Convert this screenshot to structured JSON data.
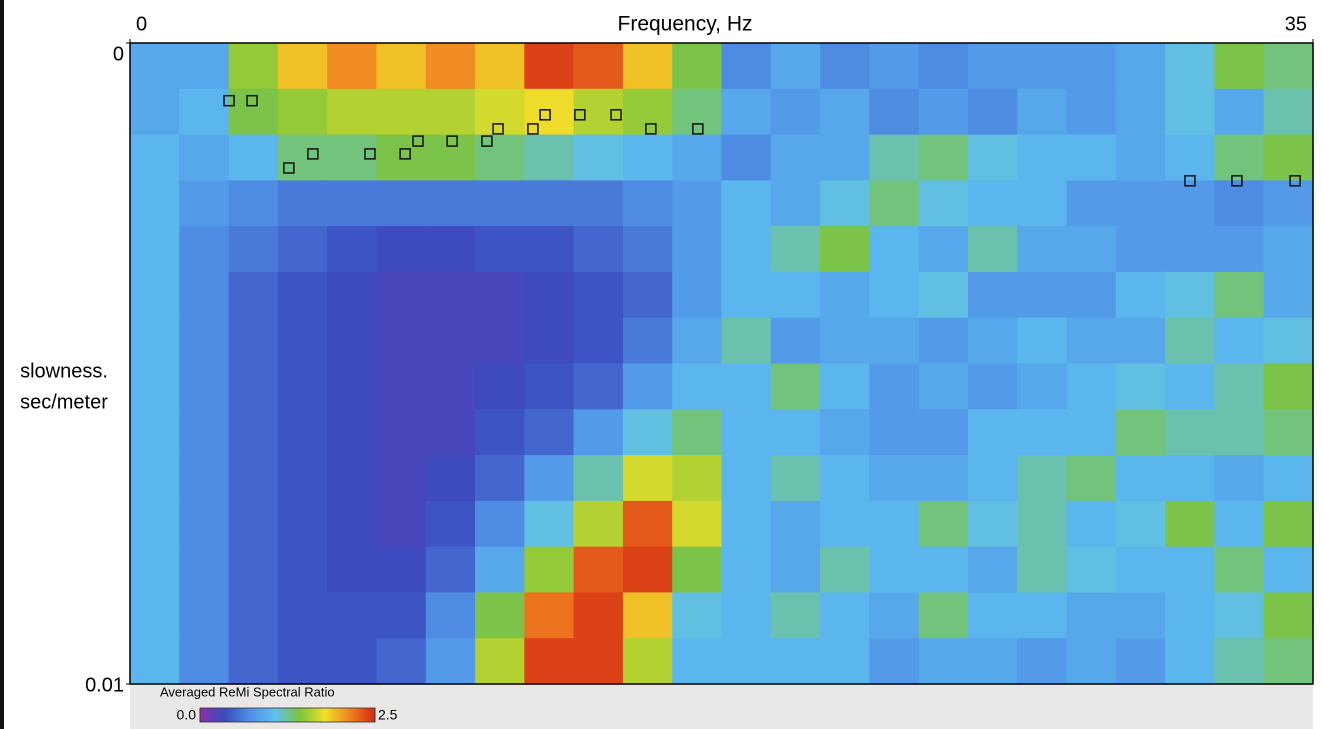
{
  "chart_data": {
    "type": "heatmap",
    "title": "Frequency, Hz",
    "y_label_lines": [
      "slowness.",
      "sec/meter"
    ],
    "xlim": [
      0,
      35
    ],
    "xticks": [
      0,
      35
    ],
    "ylim": [
      0,
      0.01
    ],
    "yticks": [
      0,
      0.01
    ],
    "y_inverted": true,
    "colorbar": {
      "title": "Averaged ReMi Spectral Ratio",
      "zlim": [
        0,
        2.5
      ],
      "ticks": [
        {
          "value": 0,
          "label": "0.0"
        },
        {
          "value": 2.5,
          "label": "2.5"
        }
      ],
      "colormap": [
        "#8a2fa8",
        "#3b4cbf",
        "#4f8fe6",
        "#5fc0f0",
        "#7dc43a",
        "#efe02a",
        "#f08020",
        "#d42a14"
      ]
    },
    "z": [
      [
        0.9,
        0.9,
        1.5,
        1.9,
        2.1,
        1.9,
        2.1,
        1.9,
        2.4,
        2.3,
        1.9,
        1.4,
        0.7,
        0.9,
        0.7,
        0.8,
        0.7,
        0.8,
        0.8,
        0.8,
        0.9,
        1.1,
        1.4,
        1.3
      ],
      [
        0.9,
        1.0,
        1.4,
        1.5,
        1.6,
        1.6,
        1.6,
        1.7,
        1.8,
        1.6,
        1.5,
        1.3,
        0.9,
        0.8,
        0.9,
        0.7,
        0.8,
        0.7,
        0.9,
        0.8,
        0.9,
        1.1,
        0.9,
        1.2
      ],
      [
        1.0,
        0.9,
        1.0,
        1.3,
        1.3,
        1.4,
        1.4,
        1.3,
        1.2,
        1.1,
        1.0,
        0.9,
        0.7,
        0.9,
        0.9,
        1.2,
        1.3,
        1.1,
        1.0,
        1.0,
        0.9,
        1.0,
        1.3,
        1.4
      ],
      [
        1.0,
        0.8,
        0.7,
        0.6,
        0.6,
        0.6,
        0.6,
        0.6,
        0.6,
        0.6,
        0.7,
        0.8,
        1.0,
        0.9,
        1.1,
        1.3,
        1.1,
        1.0,
        1.0,
        0.8,
        0.8,
        0.8,
        0.7,
        0.8
      ],
      [
        1.0,
        0.7,
        0.6,
        0.5,
        0.4,
        0.35,
        0.35,
        0.4,
        0.4,
        0.5,
        0.6,
        0.8,
        1.0,
        1.2,
        1.4,
        1.0,
        0.9,
        1.2,
        0.9,
        0.9,
        0.8,
        0.8,
        0.8,
        0.9
      ],
      [
        1.0,
        0.7,
        0.5,
        0.4,
        0.35,
        0.3,
        0.3,
        0.3,
        0.35,
        0.4,
        0.5,
        0.8,
        1.0,
        1.0,
        0.9,
        1.0,
        1.1,
        0.8,
        0.8,
        0.8,
        1.0,
        1.1,
        1.3,
        0.9
      ],
      [
        1.0,
        0.7,
        0.5,
        0.4,
        0.35,
        0.3,
        0.3,
        0.3,
        0.35,
        0.4,
        0.6,
        0.9,
        1.2,
        0.8,
        0.9,
        0.9,
        0.8,
        0.9,
        1.0,
        0.9,
        0.9,
        1.2,
        1.0,
        1.1
      ],
      [
        1.0,
        0.7,
        0.5,
        0.4,
        0.35,
        0.3,
        0.3,
        0.35,
        0.4,
        0.5,
        0.8,
        1.0,
        1.0,
        1.3,
        1.0,
        0.8,
        0.9,
        0.8,
        0.9,
        1.0,
        1.1,
        1.0,
        1.2,
        1.4
      ],
      [
        1.0,
        0.7,
        0.5,
        0.4,
        0.35,
        0.3,
        0.3,
        0.4,
        0.5,
        0.8,
        1.1,
        1.3,
        1.0,
        1.0,
        0.9,
        0.8,
        0.8,
        1.0,
        1.0,
        1.0,
        1.3,
        1.2,
        1.2,
        1.3
      ],
      [
        1.0,
        0.7,
        0.5,
        0.4,
        0.35,
        0.3,
        0.35,
        0.5,
        0.8,
        1.2,
        1.7,
        1.6,
        1.0,
        1.2,
        1.0,
        0.9,
        0.9,
        1.0,
        1.2,
        1.3,
        1.0,
        1.0,
        0.9,
        1.0
      ],
      [
        1.0,
        0.7,
        0.5,
        0.4,
        0.35,
        0.3,
        0.4,
        0.7,
        1.1,
        1.6,
        2.3,
        1.7,
        1.0,
        0.9,
        1.0,
        1.0,
        1.3,
        1.1,
        1.2,
        1.0,
        1.1,
        1.4,
        1.0,
        1.4
      ],
      [
        1.0,
        0.7,
        0.5,
        0.4,
        0.35,
        0.35,
        0.5,
        0.9,
        1.5,
        2.3,
        2.4,
        1.4,
        1.0,
        0.9,
        1.2,
        1.0,
        1.0,
        0.9,
        1.2,
        1.1,
        1.0,
        1.0,
        1.3,
        1.0
      ],
      [
        1.0,
        0.7,
        0.5,
        0.4,
        0.4,
        0.4,
        0.7,
        1.4,
        2.2,
        2.4,
        1.9,
        1.1,
        1.0,
        1.2,
        1.0,
        0.9,
        1.3,
        1.0,
        1.0,
        0.9,
        0.9,
        1.0,
        1.1,
        1.4
      ],
      [
        1.0,
        0.7,
        0.5,
        0.4,
        0.4,
        0.5,
        0.8,
        1.6,
        2.4,
        2.4,
        1.6,
        1.0,
        1.0,
        1.0,
        1.0,
        0.8,
        0.9,
        0.9,
        0.8,
        0.9,
        0.8,
        1.0,
        1.2,
        1.3
      ]
    ],
    "picks": {
      "x": [
        2.93,
        3.61,
        4.7,
        5.41,
        7.1,
        8.14,
        8.52,
        9.53,
        10.56,
        10.89,
        11.92,
        12.28,
        13.31,
        14.38,
        15.41,
        16.8,
        31.36,
        32.75,
        34.47
      ],
      "y": [
        0.0009,
        0.0009,
        0.00195,
        0.00173,
        0.00173,
        0.00173,
        0.00153,
        0.00153,
        0.00153,
        0.00134,
        0.00134,
        0.00112,
        0.00112,
        0.00112,
        0.00134,
        0.00134,
        0.00215,
        0.00215,
        0.00215
      ]
    }
  }
}
